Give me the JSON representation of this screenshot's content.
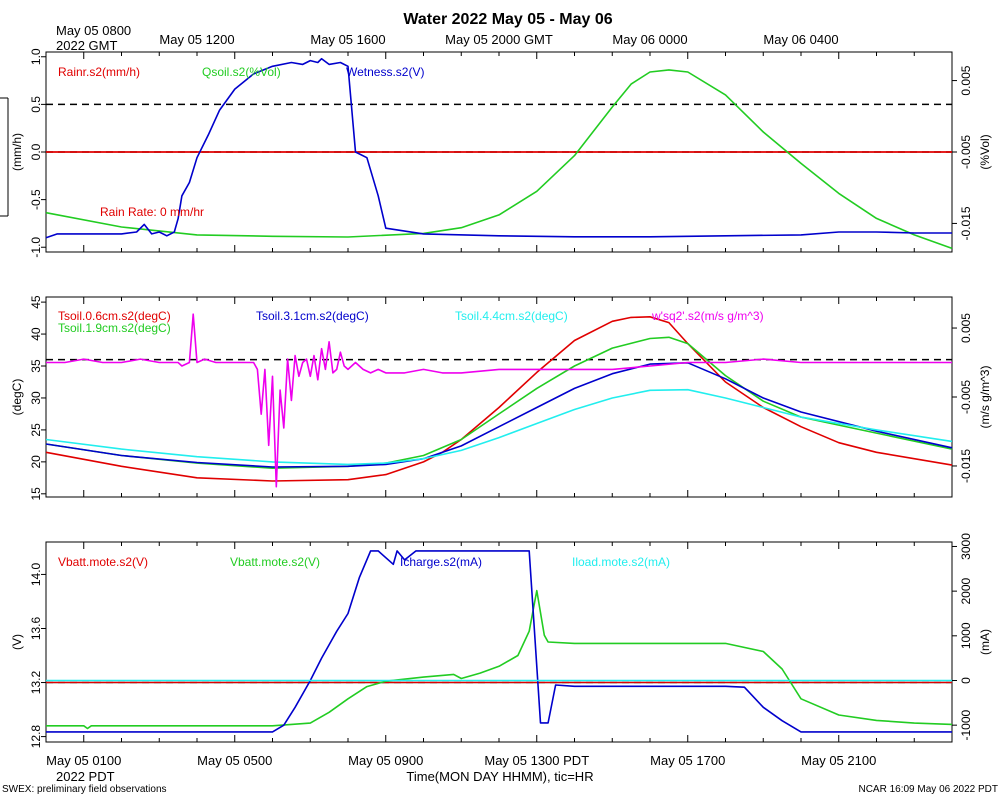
{
  "title": "Water 2022 May 05 - May 06",
  "top_left_label_1": "May 05 0800",
  "top_left_label_2": "2022 GMT",
  "top_ticks": [
    "May 05 1200",
    "May 05 1600",
    "May 05 2000 GMT",
    "May 06 0000",
    "May 06 0400"
  ],
  "bottom_ticks": [
    "May 05 0100",
    "May 05 0500",
    "May 05 0900",
    "May 05 1300 PDT",
    "May 05 1700",
    "May 05 2100"
  ],
  "bottom_left_label": "2022 PDT",
  "xlabel": "Time(MON DAY HHMM), tic=HR",
  "footer_left": "SWEX: preliminary field observations",
  "footer_right": "NCAR 16:09 May 06 2022 PDT",
  "colors": {
    "red": "#e00000",
    "green": "#22cc22",
    "blue": "#0000cc",
    "cyan": "#22eeee",
    "magenta": "#ee00ee"
  },
  "chart_data": [
    {
      "type": "line",
      "panel": "rain-soil-moisture-wetness",
      "x_unit": "hours since May 05 00:00 PDT",
      "xlim": [
        0,
        24
      ],
      "ylabel_left": "(mm/h)",
      "ylabel_right": "(%Vol)",
      "ylim_left": [
        -1.05,
        1.05
      ],
      "ylim_right": [
        -0.019,
        0.009
      ],
      "yticks_left": [
        "1.0",
        "0.5",
        "0.0",
        "-0.5",
        "-1.0"
      ],
      "yticks_right": [
        "0.005",
        "-0.005",
        "-0.015"
      ],
      "annotation": "Rain Rate: 0 mm/hr",
      "hlines_left": [
        {
          "y": 0.5,
          "style": "dashed",
          "color": "#000000"
        },
        {
          "y": 0.0,
          "style": "dashed",
          "color": "#000000"
        },
        {
          "y": 0.0,
          "style": "solid",
          "color": "#e00000"
        }
      ],
      "series": [
        {
          "name": "Rainr.s2(mm/h)",
          "color": "#e00000",
          "axis": "left",
          "x": [
            0,
            24
          ],
          "values": [
            0,
            0
          ]
        },
        {
          "name": "Qsoil.s2(%Vol)",
          "color": "#22cc22",
          "axis": "right",
          "x": [
            0,
            2,
            4,
            6,
            8,
            10,
            11,
            12,
            13,
            14,
            15,
            15.5,
            16,
            16.5,
            17,
            18,
            19,
            20,
            21,
            22,
            23,
            24
          ],
          "values": [
            -0.0135,
            -0.0155,
            -0.0166,
            -0.0168,
            -0.0169,
            -0.0164,
            -0.0156,
            -0.0138,
            -0.0105,
            -0.0055,
            0.0013,
            0.0045,
            0.0062,
            0.0065,
            0.0062,
            0.003,
            -0.0022,
            -0.0066,
            -0.0108,
            -0.0143,
            -0.0166,
            -0.0185
          ]
        },
        {
          "name": "Wetness.s2(V)",
          "color": "#0000cc",
          "axis": "left",
          "x": [
            0,
            0.3,
            1,
            2,
            2.4,
            2.6,
            2.8,
            3,
            3.2,
            3.4,
            3.5,
            3.6,
            3.8,
            4,
            4.3,
            4.6,
            5,
            5.5,
            6,
            6.5,
            6.8,
            7,
            7.2,
            7.3,
            7.5,
            7.8,
            8,
            8.2,
            8.5,
            8.8,
            9,
            10,
            12,
            14,
            16,
            18,
            20,
            21,
            22,
            23,
            24
          ],
          "values": [
            -0.9,
            -0.86,
            -0.86,
            -0.86,
            -0.84,
            -0.76,
            -0.86,
            -0.84,
            -0.88,
            -0.84,
            -0.7,
            -0.46,
            -0.32,
            -0.06,
            0.18,
            0.44,
            0.66,
            0.82,
            0.9,
            0.94,
            0.92,
            0.96,
            0.94,
            0.98,
            0.92,
            0.94,
            0.9,
            0.0,
            -0.06,
            -0.46,
            -0.8,
            -0.86,
            -0.88,
            -0.89,
            -0.89,
            -0.88,
            -0.87,
            -0.84,
            -0.84,
            -0.85,
            -0.85
          ]
        }
      ]
    },
    {
      "type": "line",
      "panel": "soil-temperature-flux",
      "x_unit": "hours since May 05 00:00 PDT",
      "xlim": [
        0,
        24
      ],
      "ylabel_left": "(degC)",
      "ylabel_right": "(m/s g/m^3)",
      "ylim_left": [
        14.5,
        45.8
      ],
      "ylim_right": [
        -0.0195,
        0.0095
      ],
      "yticks_left": [
        "45",
        "40",
        "35",
        "30",
        "25",
        "20",
        "15"
      ],
      "yticks_right": [
        "0.005",
        "-0.005",
        "-0.015"
      ],
      "hlines_left": [
        {
          "y": 36.0,
          "style": "dashed",
          "color": "#000000"
        }
      ],
      "series": [
        {
          "name": "Tsoil.0.6cm.s2(degC)",
          "color": "#e00000",
          "axis": "left",
          "x": [
            0,
            2,
            4,
            6,
            8,
            9,
            10,
            10.5,
            11,
            12,
            13,
            14,
            15,
            15.5,
            16,
            16.5,
            17,
            18,
            19,
            20,
            21,
            22,
            24
          ],
          "values": [
            21.5,
            19.3,
            17.5,
            17.0,
            17.2,
            18.0,
            20.0,
            21.5,
            23.5,
            28.5,
            34.0,
            39.0,
            42.0,
            42.6,
            42.7,
            41.8,
            38.5,
            32.5,
            28.5,
            25.5,
            23.0,
            21.5,
            19.5
          ]
        },
        {
          "name": "Tsoil.1.9cm.s2(degC)",
          "color": "#22cc22",
          "axis": "left",
          "x": [
            0,
            2,
            4,
            6,
            8,
            9,
            10,
            11,
            12,
            13,
            14,
            15,
            16,
            16.5,
            17,
            18,
            19,
            20,
            22,
            24
          ],
          "values": [
            22.8,
            21.0,
            19.8,
            19.0,
            19.3,
            19.8,
            21.0,
            23.5,
            27.5,
            31.5,
            35.0,
            37.8,
            39.3,
            39.5,
            38.5,
            33.5,
            29.5,
            27.0,
            24.5,
            22.0
          ]
        },
        {
          "name": "Tsoil.3.1cm.s2(degC)",
          "color": "#0000cc",
          "axis": "left",
          "x": [
            0,
            2,
            4,
            6,
            8,
            9,
            10,
            11,
            12,
            13,
            14,
            15,
            16,
            17,
            18,
            19,
            20,
            22,
            24
          ],
          "values": [
            22.8,
            21.0,
            19.9,
            19.2,
            19.3,
            19.6,
            20.5,
            22.5,
            25.5,
            28.5,
            31.5,
            33.8,
            35.3,
            35.5,
            33.0,
            30.0,
            27.8,
            24.8,
            22.2
          ]
        },
        {
          "name": "Tsoil.4.4cm.s2(degC)",
          "color": "#22eeee",
          "axis": "left",
          "x": [
            0,
            2,
            4,
            6,
            8,
            9,
            10,
            11,
            12,
            13,
            14,
            15,
            16,
            17,
            18,
            19,
            20,
            22,
            24
          ],
          "values": [
            23.5,
            22.0,
            20.8,
            20.0,
            19.6,
            19.8,
            20.5,
            21.8,
            23.8,
            26.0,
            28.2,
            30.0,
            31.2,
            31.3,
            30.0,
            28.5,
            27.0,
            25.0,
            23.2
          ]
        },
        {
          "name": "w'sq2'.s2(m/s g/m^3)",
          "color": "#ee00ee",
          "axis": "right",
          "x": [
            0,
            0.5,
            1,
            1.5,
            2,
            2.5,
            3,
            3.5,
            3.6,
            3.8,
            3.9,
            4,
            4.2,
            4.5,
            5,
            5.5,
            5.6,
            5.7,
            5.8,
            5.9,
            6,
            6.1,
            6.2,
            6.3,
            6.4,
            6.5,
            6.6,
            6.7,
            6.8,
            6.9,
            7,
            7.1,
            7.2,
            7.3,
            7.4,
            7.5,
            7.6,
            7.7,
            7.8,
            7.9,
            8,
            8.2,
            8.4,
            8.6,
            8.8,
            9,
            9.5,
            10,
            10.5,
            11,
            12,
            13,
            14,
            15,
            16,
            17,
            18,
            19,
            20,
            21,
            22,
            23,
            24
          ],
          "values": [
            0.0,
            0.0,
            0.0005,
            0.0,
            0.0,
            0.0005,
            0.0,
            0.0,
            -0.0005,
            0.0,
            0.007,
            0.0,
            0.0005,
            0.0,
            0.0,
            0.0,
            -0.001,
            -0.0075,
            -0.001,
            -0.012,
            -0.002,
            -0.018,
            -0.004,
            -0.0095,
            0.0005,
            -0.0055,
            0.001,
            -0.002,
            0.0,
            0.0005,
            -0.002,
            0.001,
            -0.0025,
            0.002,
            -0.001,
            0.003,
            -0.0015,
            -0.001,
            0.0015,
            -0.0005,
            -0.001,
            0.0,
            -0.001,
            -0.0015,
            -0.001,
            -0.0015,
            -0.0015,
            -0.001,
            -0.0015,
            -0.0015,
            -0.001,
            -0.001,
            -0.001,
            -0.001,
            -0.0005,
            0.0,
            0.0,
            0.0005,
            0.0,
            0.0,
            0.0,
            0.0,
            0.0
          ]
        }
      ]
    },
    {
      "type": "line",
      "panel": "battery-current",
      "x_unit": "hours since May 05 00:00 PDT",
      "xlim": [
        0,
        24
      ],
      "ylabel_left": "(V)",
      "ylabel_right": "(mA)",
      "ylim_left": [
        12.76,
        14.24
      ],
      "ylim_right": [
        -1377,
        3100
      ],
      "yticks_left": [
        "14.0",
        "13.6",
        "13.2",
        "12.8"
      ],
      "yticks_right": [
        "3000",
        "2000",
        "1000",
        "0",
        "-1000"
      ],
      "hlines_left": [
        {
          "y": 13.2,
          "style": "dashed",
          "color": "#000000"
        },
        {
          "y": 13.2,
          "style": "solid",
          "color": "#22eeee"
        }
      ],
      "series": [
        {
          "name": "Vbatt.mote.s2(V)",
          "color": "#e00000",
          "axis": "left",
          "x": [
            0,
            24
          ],
          "values": [
            13.2,
            13.2
          ]
        },
        {
          "name": "Vbatt.mote.s2(V)",
          "color": "#22cc22",
          "axis": "left",
          "x": [
            0,
            1,
            1.1,
            1.2,
            2,
            3,
            4,
            5,
            6,
            7,
            7.5,
            8,
            8.5,
            9,
            10,
            10.8,
            11,
            11.5,
            12,
            12.5,
            12.8,
            13,
            13.2,
            13.3,
            14,
            15,
            16,
            17,
            18,
            19,
            19.5,
            20,
            21,
            22,
            23,
            24
          ],
          "values": [
            12.88,
            12.88,
            12.86,
            12.88,
            12.88,
            12.88,
            12.88,
            12.88,
            12.88,
            12.9,
            12.98,
            13.08,
            13.17,
            13.21,
            13.24,
            13.26,
            13.23,
            13.27,
            13.32,
            13.4,
            13.58,
            13.88,
            13.55,
            13.5,
            13.49,
            13.49,
            13.49,
            13.49,
            13.49,
            13.43,
            13.3,
            13.08,
            12.96,
            12.92,
            12.9,
            12.89
          ]
        },
        {
          "name": "Icharge.s2(mA)",
          "color": "#0000cc",
          "axis": "right",
          "x": [
            0,
            2,
            4,
            6,
            6.3,
            6.6,
            7,
            7.3,
            7.7,
            8,
            8.3,
            8.6,
            8.8,
            9.2,
            9.3,
            9.5,
            9.8,
            10,
            11,
            12,
            12.4,
            12.6,
            12.8,
            13.1,
            13.3,
            13.5,
            14,
            15,
            16,
            17,
            18,
            18.5,
            19,
            19.5,
            20,
            21,
            22,
            23,
            24
          ],
          "values": [
            -1150,
            -1150,
            -1150,
            -1150,
            -1000,
            -600,
            0,
            500,
            1100,
            1500,
            2300,
            2900,
            2900,
            2600,
            2900,
            2700,
            2900,
            2900,
            2900,
            2900,
            2900,
            2900,
            2900,
            -950,
            -950,
            -100,
            -130,
            -130,
            -130,
            -130,
            -130,
            -150,
            -600,
            -900,
            -1150,
            -1150,
            -1150,
            -1150,
            -1150
          ]
        },
        {
          "name": "Iload.mote.s2(mA)",
          "color": "#22eeee",
          "axis": "right",
          "x": [
            0,
            24
          ],
          "values": [
            0,
            0
          ]
        }
      ]
    }
  ]
}
